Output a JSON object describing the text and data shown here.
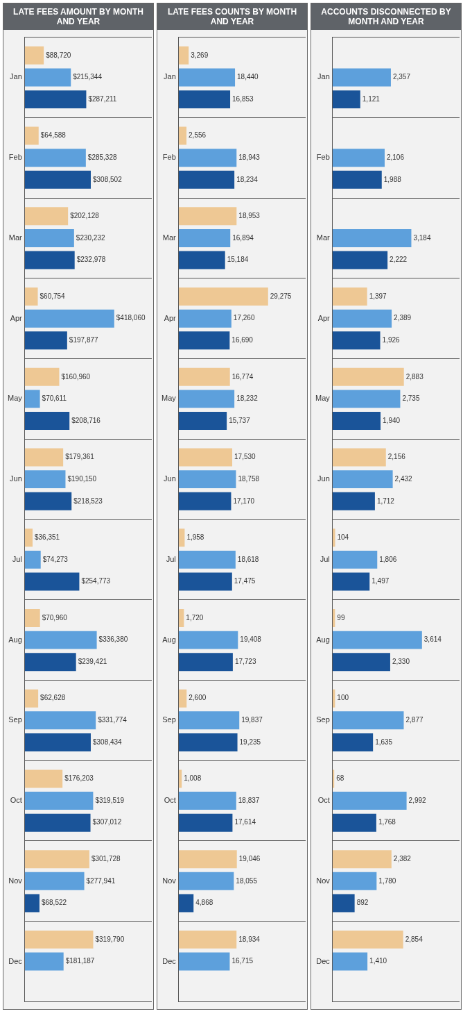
{
  "chart_data": [
    {
      "type": "bar",
      "orientation": "horizontal",
      "title": "LATE FEES AMOUNT BY MONTH AND YEAR",
      "grid": "y",
      "categories": [
        "Jan",
        "Feb",
        "Mar",
        "Apr",
        "May",
        "Jun",
        "Jul",
        "Aug",
        "Sep",
        "Oct",
        "Nov",
        "Dec"
      ],
      "series": [
        {
          "color": "#eec894",
          "values": [
            88720,
            64588,
            202128,
            60754,
            160960,
            179361,
            36351,
            70960,
            62628,
            176203,
            301728,
            319790
          ],
          "value_labels": [
            "$88,720",
            "$64,588",
            "$202,128",
            "$60,754",
            "$160,960",
            "$179,361",
            "$36,351",
            "$70,960",
            "$62,628",
            "$176,203",
            "$301,728",
            "$319,790"
          ]
        },
        {
          "color": "#5da0dc",
          "values": [
            215344,
            285328,
            230232,
            418060,
            70611,
            190150,
            74273,
            336380,
            331774,
            319519,
            277941,
            181187
          ],
          "value_labels": [
            "$215,344",
            "$285,328",
            "$230,232",
            "$418,060",
            "$70,611",
            "$190,150",
            "$74,273",
            "$336,380",
            "$331,774",
            "$319,519",
            "$277,941",
            "$181,187"
          ]
        },
        {
          "color": "#1a5499",
          "values": [
            287211,
            308502,
            232978,
            197877,
            208716,
            218523,
            254773,
            239421,
            308434,
            307012,
            68522,
            null
          ],
          "value_labels": [
            "$287,211",
            "$308,502",
            "$232,978",
            "$197,877",
            "$208,716",
            "$218,523",
            "$254,773",
            "$239,421",
            "$308,434",
            "$307,012",
            "$68,522",
            null
          ]
        }
      ]
    },
    {
      "type": "bar",
      "orientation": "horizontal",
      "title": "LATE FEES COUNTS BY MONTH AND YEAR",
      "grid": "y",
      "categories": [
        "Jan",
        "Feb",
        "Mar",
        "Apr",
        "May",
        "Jun",
        "Jul",
        "Aug",
        "Sep",
        "Oct",
        "Nov",
        "Dec"
      ],
      "series": [
        {
          "color": "#eec894",
          "values": [
            3269,
            2556,
            18953,
            29275,
            16774,
            17530,
            1958,
            1720,
            2600,
            1008,
            19046,
            18934
          ],
          "value_labels": [
            "3,269",
            "2,556",
            "18,953",
            "29,275",
            "16,774",
            "17,530",
            "1,958",
            "1,720",
            "2,600",
            "1,008",
            "19,046",
            "18,934"
          ]
        },
        {
          "color": "#5da0dc",
          "values": [
            18440,
            18943,
            16894,
            17260,
            18232,
            18758,
            18618,
            19408,
            19837,
            18837,
            18055,
            16715
          ],
          "value_labels": [
            "18,440",
            "18,943",
            "16,894",
            "17,260",
            "18,232",
            "18,758",
            "18,618",
            "19,408",
            "19,837",
            "18,837",
            "18,055",
            "16,715"
          ]
        },
        {
          "color": "#1a5499",
          "values": [
            16853,
            18234,
            15184,
            16690,
            15737,
            17170,
            17475,
            17723,
            19235,
            17614,
            4868,
            null
          ],
          "value_labels": [
            "16,853",
            "18,234",
            "15,184",
            "16,690",
            "15,737",
            "17,170",
            "17,475",
            "17,723",
            "19,235",
            "17,614",
            "4,868",
            null
          ]
        }
      ]
    },
    {
      "type": "bar",
      "orientation": "horizontal",
      "title": "ACCOUNTS DISCONNECTED BY MONTH AND YEAR",
      "grid": "y",
      "categories": [
        "Jan",
        "Feb",
        "Mar",
        "Apr",
        "May",
        "Jun",
        "Jul",
        "Aug",
        "Sep",
        "Oct",
        "Nov",
        "Dec"
      ],
      "series": [
        {
          "color": "#eec894",
          "values": [
            null,
            null,
            null,
            1397,
            2883,
            2156,
            104,
            99,
            100,
            68,
            2382,
            2854
          ],
          "value_labels": [
            null,
            null,
            null,
            "1,397",
            "2,883",
            "2,156",
            "104",
            "99",
            "100",
            "68",
            "2,382",
            "2,854"
          ]
        },
        {
          "color": "#5da0dc",
          "values": [
            2357,
            2106,
            3184,
            2389,
            2735,
            2432,
            1806,
            3614,
            2877,
            2992,
            1780,
            1410
          ],
          "value_labels": [
            "2,357",
            "2,106",
            "3,184",
            "2,389",
            "2,735",
            "2,432",
            "1,806",
            "3,614",
            "2,877",
            "2,992",
            "1,780",
            "1,410"
          ]
        },
        {
          "color": "#1a5499",
          "values": [
            1121,
            1988,
            2222,
            1926,
            1940,
            1712,
            1497,
            2330,
            1635,
            1768,
            892,
            null
          ],
          "value_labels": [
            "1,121",
            "1,988",
            "2,222",
            "1,926",
            "1,940",
            "1,712",
            "1,497",
            "2,330",
            "1,635",
            "1,768",
            "892",
            null
          ]
        }
      ]
    }
  ]
}
